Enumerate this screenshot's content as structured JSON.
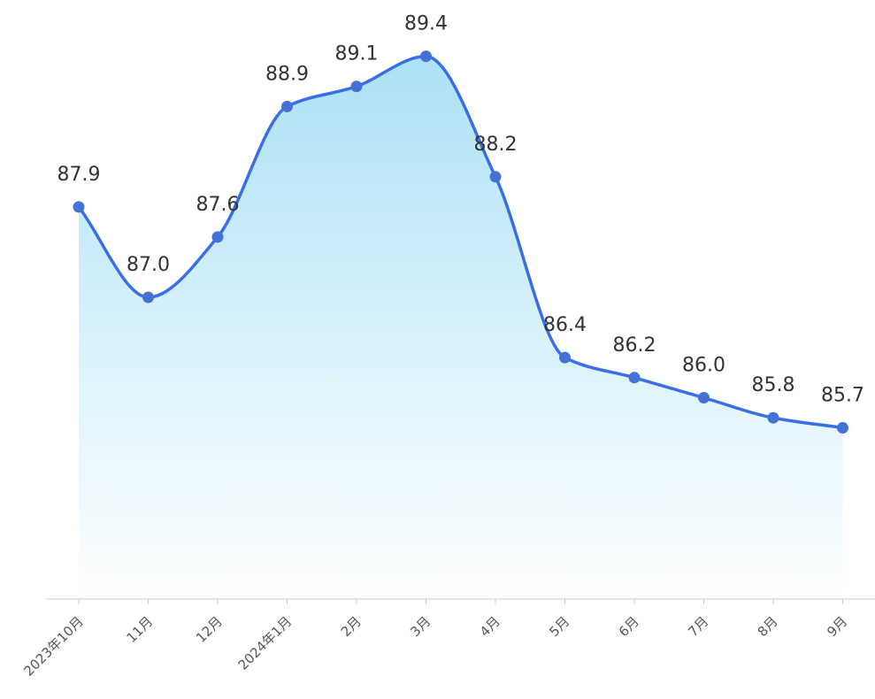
{
  "chart_data": {
    "type": "area",
    "categories": [
      "2023年10月",
      "11月",
      "12月",
      "2024年1月",
      "2月",
      "3月",
      "4月",
      "5月",
      "6月",
      "7月",
      "8月",
      "9月"
    ],
    "values": [
      87.9,
      87.0,
      87.6,
      88.9,
      89.1,
      89.4,
      88.2,
      86.4,
      86.2,
      86.0,
      85.8,
      85.7
    ],
    "value_labels": [
      "87.9",
      "87.0",
      "87.6",
      "88.9",
      "89.1",
      "89.4",
      "88.2",
      "86.4",
      "86.2",
      "86.0",
      "85.8",
      "85.7"
    ],
    "title": "",
    "xlabel": "",
    "ylabel": "",
    "smooth": true,
    "grid": false,
    "colors": {
      "line": "#3a6ee8",
      "marker": "#4472d4",
      "area_top": "#a8e0f5",
      "area_bottom": "#ffffff",
      "axis": "#cccccc"
    }
  }
}
